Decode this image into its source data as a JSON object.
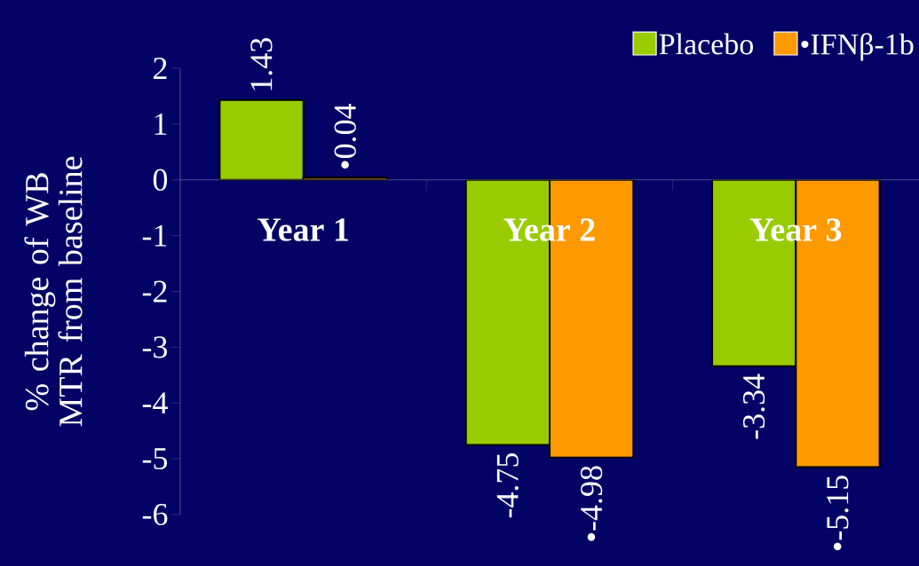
{
  "chart_data": {
    "type": "bar",
    "categories": [
      "Year 1",
      "Year 2",
      "Year 3"
    ],
    "ylabel": "% change of WB MTR from baseline",
    "ylim": [
      -6,
      2
    ],
    "yticks": [
      -6,
      -5,
      -4,
      -3,
      -2,
      -1,
      0,
      1,
      2
    ],
    "legend": "top right",
    "series": [
      {
        "name": "Placebo",
        "color": "#99cc00",
        "values": [
          1.43,
          -4.75,
          -3.34
        ],
        "value_labels": [
          "1.43",
          "-4.75",
          "-3.34"
        ]
      },
      {
        "name": "•IFNβ-1b",
        "color": "#ff9900",
        "values": [
          0.04,
          -4.98,
          -5.15
        ],
        "value_labels": [
          "•0.04",
          "•-4.98",
          "•-5.15"
        ]
      }
    ]
  }
}
